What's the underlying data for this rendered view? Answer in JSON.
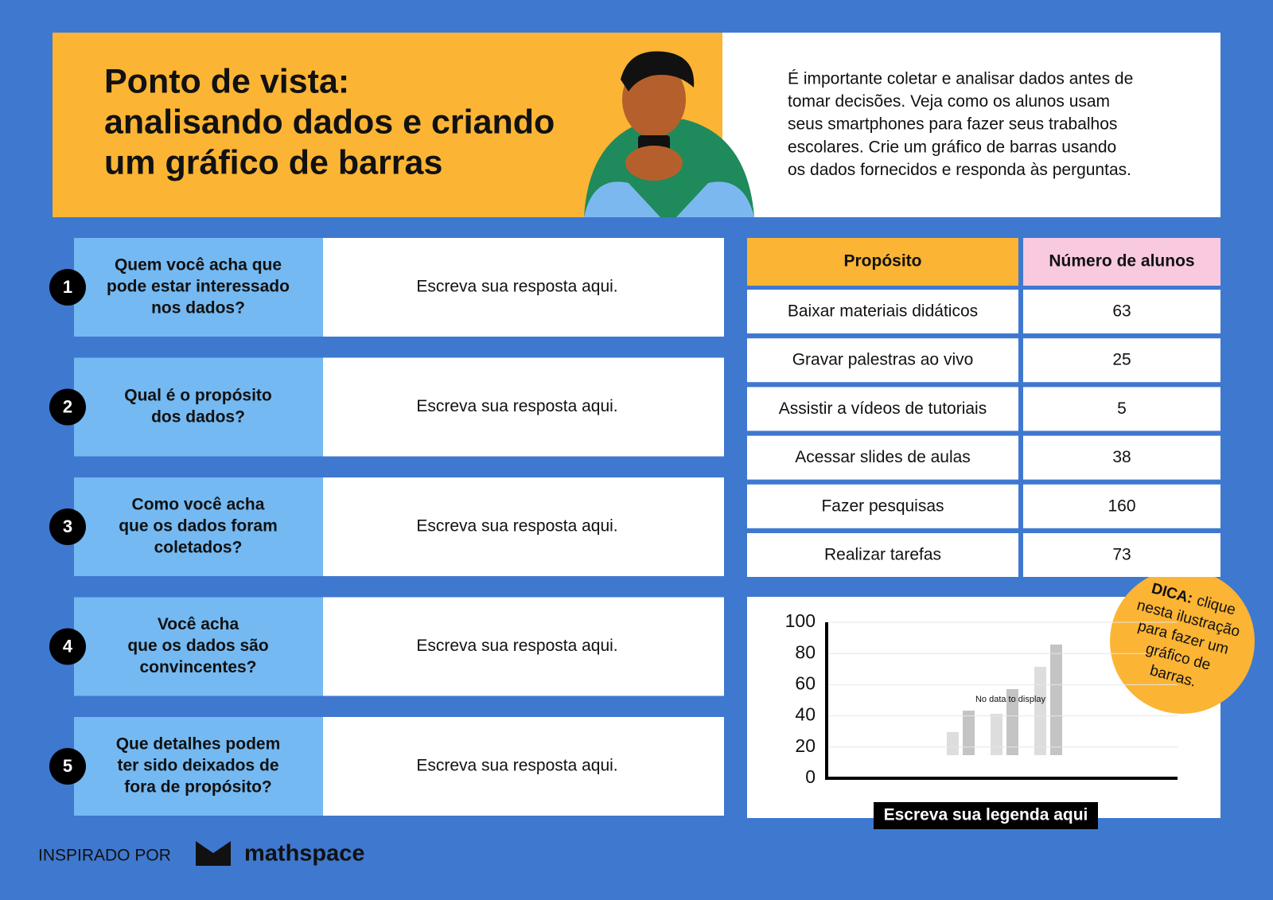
{
  "header": {
    "title_lines": [
      "Ponto de vista:",
      "analisando dados e criando",
      "um gráfico de barras"
    ],
    "intro_lines": [
      "É importante coletar e analisar dados antes de",
      "tomar decisões. Veja como os alunos usam",
      "seus smartphones para fazer seus trabalhos",
      "escolares. Crie um gráfico de barras usando",
      "os dados fornecidos e responda às perguntas."
    ]
  },
  "questions": [
    {
      "number": 1,
      "lines": [
        "Quem você acha que",
        "pode estar interessado",
        "nos dados?"
      ],
      "answer": "Escreva sua resposta aqui."
    },
    {
      "number": 2,
      "lines": [
        "Qual é o propósito",
        "dos dados?"
      ],
      "answer": "Escreva sua resposta aqui."
    },
    {
      "number": 3,
      "lines": [
        "Como você acha",
        "que os dados foram",
        "coletados?"
      ],
      "answer": "Escreva sua resposta aqui."
    },
    {
      "number": 4,
      "lines": [
        "Você acha",
        "que os dados são",
        "convincentes?"
      ],
      "answer": "Escreva sua resposta aqui."
    },
    {
      "number": 5,
      "lines": [
        "Que detalhes podem",
        "ter sido deixados de",
        "fora de propósito?"
      ],
      "answer": "Escreva sua resposta aqui."
    }
  ],
  "table": {
    "headers": [
      "Propósito",
      "Número de alunos"
    ],
    "rows": [
      [
        "Baixar materiais didáticos",
        63
      ],
      [
        "Gravar palestras ao vivo",
        25
      ],
      [
        "Assistir a vídeos de tutoriais",
        5
      ],
      [
        "Acessar slides de aulas",
        38
      ],
      [
        "Fazer pesquisas",
        160
      ],
      [
        "Realizar tarefas",
        73
      ]
    ]
  },
  "chart": {
    "ylim": [
      0,
      100
    ],
    "yticks": [
      0,
      20,
      40,
      60,
      80,
      100
    ],
    "placeholder": "No data to display",
    "caption": "Escreva sua legenda aqui"
  },
  "tip": {
    "label": "DICA:",
    "lines": [
      "clique",
      "nesta ilustração",
      "para fazer um",
      "gráfico de",
      "barras."
    ]
  },
  "footer": {
    "inspired": "INSPIRADO POR",
    "brand": "mathspace"
  }
}
